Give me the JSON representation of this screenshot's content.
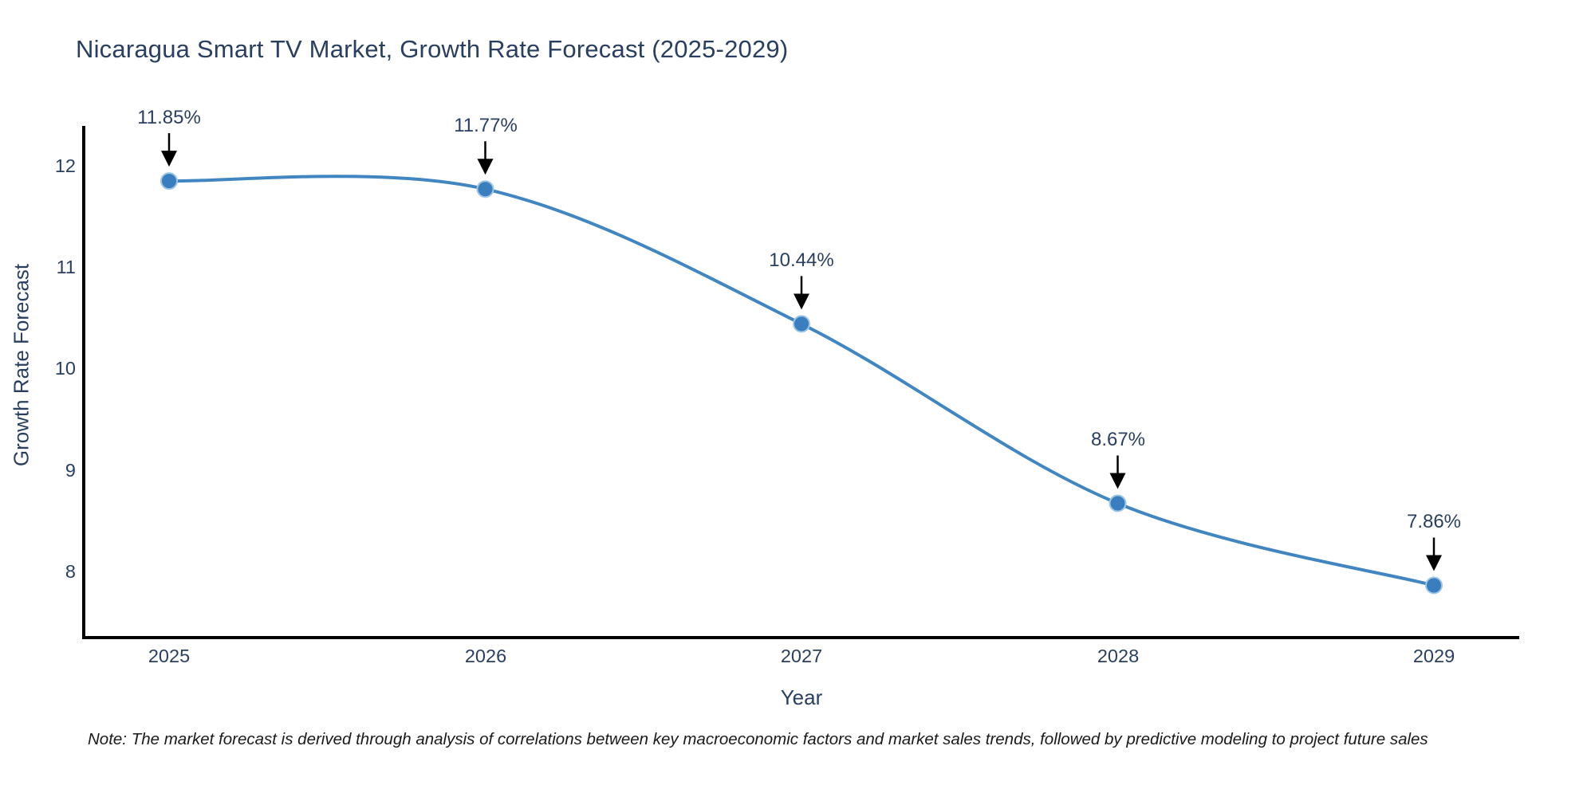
{
  "title": "Nicaragua Smart TV Market, Growth Rate Forecast (2025-2029)",
  "note": "Note: The market forecast is derived through analysis of correlations between key macroeconomic factors and market sales trends, followed by predictive modeling to project future sales",
  "colors": {
    "line": "#4186c0",
    "marker_fill": "#3a7ebf",
    "marker_halo": "#9ec6e2",
    "axis": "#000000",
    "text": "#2a3f5f",
    "annotation_arrow": "#000000",
    "note_text": "#1a1a1a",
    "background": "#ffffff"
  },
  "chart_data": {
    "type": "line",
    "title": "Nicaragua Smart TV Market, Growth Rate Forecast (2025-2029)",
    "xlabel": "Year",
    "ylabel": "Growth Rate Forecast",
    "categories": [
      "2025",
      "2026",
      "2027",
      "2028",
      "2029"
    ],
    "values": [
      11.85,
      11.77,
      10.44,
      8.67,
      7.86
    ],
    "point_labels": [
      "11.85%",
      "11.77%",
      "10.44%",
      "8.67%",
      "7.86%"
    ],
    "series_name": "Growth Rate Forecast",
    "y_ticks": [
      12,
      11,
      10,
      9,
      8
    ],
    "ylim": [
      7.35,
      12.73
    ],
    "line_shape": "spline",
    "markers": true,
    "grid": false,
    "legend_position": "none",
    "annotations_note": "each point labeled with value and downward arrow"
  }
}
